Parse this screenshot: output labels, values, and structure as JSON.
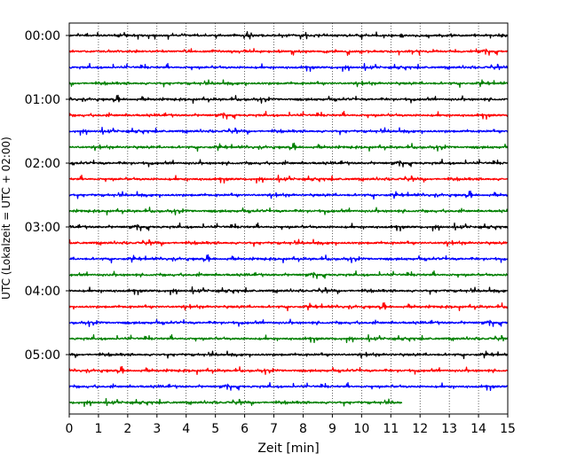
{
  "chart_data": {
    "type": "line",
    "title": "",
    "xlabel": "Zeit  [min]",
    "ylabel": "UTC (Lokalzeit = UTC + 02:00)",
    "xlim": [
      0,
      15
    ],
    "x_ticks": [
      0,
      1,
      2,
      3,
      4,
      5,
      6,
      7,
      8,
      9,
      10,
      11,
      12,
      13,
      14,
      15
    ],
    "y_tick_labels": [
      "00:00",
      "01:00",
      "02:00",
      "03:00",
      "04:00",
      "05:00"
    ],
    "grid": "vertical dotted at each minute",
    "legend": "none",
    "trace_colors": [
      "#000000",
      "#ff0000",
      "#0000ff",
      "#008000"
    ],
    "rows_per_hour": 4,
    "minutes_per_row": 15,
    "total_rows": 24,
    "last_row_end_min": 11.4,
    "series": [
      {
        "start": "00:00",
        "color": "#000000"
      },
      {
        "start": "00:15",
        "color": "#ff0000"
      },
      {
        "start": "00:30",
        "color": "#0000ff"
      },
      {
        "start": "00:45",
        "color": "#008000"
      },
      {
        "start": "01:00",
        "color": "#000000"
      },
      {
        "start": "01:15",
        "color": "#ff0000"
      },
      {
        "start": "01:30",
        "color": "#0000ff"
      },
      {
        "start": "01:45",
        "color": "#008000"
      },
      {
        "start": "02:00",
        "color": "#000000"
      },
      {
        "start": "02:15",
        "color": "#ff0000"
      },
      {
        "start": "02:30",
        "color": "#0000ff"
      },
      {
        "start": "02:45",
        "color": "#008000"
      },
      {
        "start": "03:00",
        "color": "#000000"
      },
      {
        "start": "03:15",
        "color": "#ff0000"
      },
      {
        "start": "03:30",
        "color": "#0000ff"
      },
      {
        "start": "03:45",
        "color": "#008000"
      },
      {
        "start": "04:00",
        "color": "#000000"
      },
      {
        "start": "04:15",
        "color": "#ff0000"
      },
      {
        "start": "04:30",
        "color": "#0000ff"
      },
      {
        "start": "04:45",
        "color": "#008000"
      },
      {
        "start": "05:00",
        "color": "#000000"
      },
      {
        "start": "05:15",
        "color": "#ff0000"
      },
      {
        "start": "05:30",
        "color": "#0000ff"
      },
      {
        "start": "05:45",
        "color": "#008000"
      }
    ]
  }
}
